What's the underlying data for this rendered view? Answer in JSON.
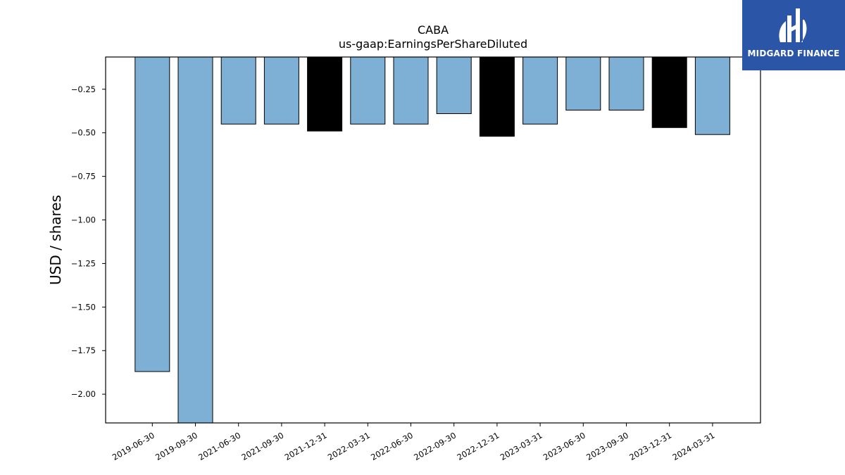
{
  "chart_data": {
    "type": "bar",
    "title": "CABA",
    "subtitle": "us-gaap:EarningsPerShareDiluted",
    "xlabel": "",
    "ylabel": "USD / shares",
    "ylim": [
      -2.165,
      -0.065
    ],
    "yticks": [
      -0.25,
      -0.5,
      -0.75,
      -1.0,
      -1.25,
      -1.5,
      -1.75,
      -2.0
    ],
    "ytick_labels": [
      "−0.25",
      "−0.50",
      "−0.75",
      "−1.00",
      "−1.25",
      "−1.50",
      "−1.75",
      "−2.00"
    ],
    "grid": false,
    "categories": [
      "2019-06-30",
      "2019-09-30",
      "2021-06-30",
      "2021-09-30",
      "2021-12-31",
      "2022-03-31",
      "2022-06-30",
      "2022-09-30",
      "2022-12-31",
      "2023-03-31",
      "2023-06-30",
      "2023-09-30",
      "2023-12-31",
      "2024-03-31"
    ],
    "values": [
      -1.87,
      -2.25,
      -0.45,
      -0.45,
      -0.49,
      -0.45,
      -0.45,
      -0.39,
      -0.52,
      -0.45,
      -0.37,
      -0.37,
      -0.47,
      -0.51
    ],
    "bar_colors": [
      "#7eb0d5",
      "#7eb0d5",
      "#7eb0d5",
      "#7eb0d5",
      "#000000",
      "#7eb0d5",
      "#7eb0d5",
      "#7eb0d5",
      "#000000",
      "#7eb0d5",
      "#7eb0d5",
      "#7eb0d5",
      "#000000",
      "#7eb0d5"
    ]
  },
  "logo": {
    "text": "MIDGARD FINANCE",
    "background": "#2b56a8",
    "icon": "midgard-logo-icon"
  }
}
